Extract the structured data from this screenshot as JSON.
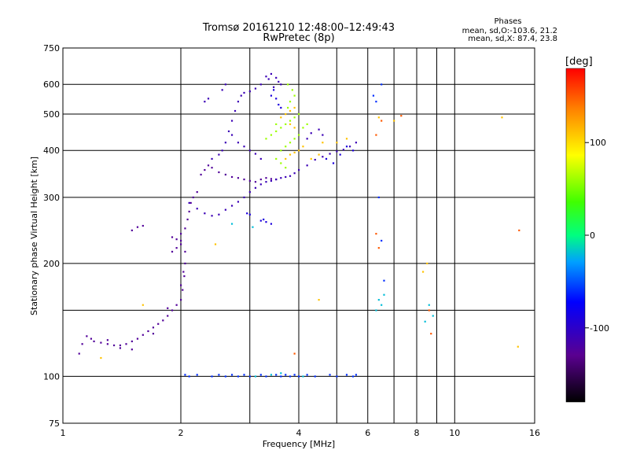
{
  "chart_data": {
    "type": "scatter",
    "title": "Tromsø 20161210 12:48:00–12:49:43",
    "subtitle": "RwPretec (8p)",
    "xlabel": "Frequency [MHz]",
    "ylabel": "Stationary phase Virtual Height [km]",
    "x_scale": "log",
    "y_scale": "log",
    "xlim": [
      1,
      16
    ],
    "ylim": [
      75,
      750
    ],
    "x_ticks": [
      1,
      2,
      4,
      6,
      8,
      10,
      16
    ],
    "x_tick_labels": [
      "1",
      "2",
      "4",
      "6",
      "8",
      "10",
      "16"
    ],
    "x_minor_gridlines": [
      3,
      5,
      7,
      9
    ],
    "y_ticks": [
      75,
      100,
      200,
      300,
      400,
      500,
      600,
      750
    ],
    "y_tick_labels": [
      "75",
      "100",
      "200",
      "300",
      "400",
      "500",
      "600",
      "750"
    ],
    "y_minor_gridlines": [
      150
    ],
    "grid": true,
    "info": {
      "heading": "Phases",
      "line_o": "mean, sd,O:-103.6, 21.2",
      "line_x": "mean, sd,X:  87.4, 23.8"
    },
    "colorbar": {
      "label": "[deg]",
      "range": [
        -180,
        180
      ],
      "ticks": [
        100,
        0,
        -100
      ],
      "tick_labels": [
        "100",
        "0",
        "-100"
      ],
      "colormap": "rainbow"
    },
    "series": [
      {
        "color_value": -125,
        "points": [
          [
            1.1,
            115
          ],
          [
            1.12,
            122
          ],
          [
            1.15,
            128
          ],
          [
            1.18,
            126
          ],
          [
            1.2,
            124
          ],
          [
            1.25,
            123
          ],
          [
            1.3,
            122
          ],
          [
            1.35,
            121
          ],
          [
            1.4,
            121
          ],
          [
            1.45,
            122
          ],
          [
            1.5,
            124
          ],
          [
            1.55,
            126
          ],
          [
            1.6,
            129
          ],
          [
            1.65,
            132
          ],
          [
            1.7,
            135
          ],
          [
            1.75,
            138
          ],
          [
            1.8,
            141
          ],
          [
            1.85,
            145
          ],
          [
            1.9,
            150
          ],
          [
            1.95,
            155
          ],
          [
            2.0,
            160
          ],
          [
            2.02,
            170
          ],
          [
            2.04,
            185
          ],
          [
            2.05,
            200
          ],
          [
            2.05,
            215
          ],
          [
            2.0,
            230
          ],
          [
            1.95,
            232
          ],
          [
            1.9,
            235
          ],
          [
            2.0,
            240
          ],
          [
            2.05,
            248
          ],
          [
            2.08,
            262
          ],
          [
            2.1,
            275
          ],
          [
            2.12,
            290
          ],
          [
            2.15,
            300
          ],
          [
            2.2,
            310
          ],
          [
            2.25,
            345
          ],
          [
            2.3,
            355
          ],
          [
            2.35,
            365
          ],
          [
            2.4,
            360
          ],
          [
            2.5,
            350
          ],
          [
            2.6,
            345
          ],
          [
            2.7,
            340
          ],
          [
            2.8,
            338
          ],
          [
            2.9,
            335
          ],
          [
            3.0,
            332
          ],
          [
            3.1,
            330
          ],
          [
            3.2,
            335
          ],
          [
            3.3,
            338
          ],
          [
            3.4,
            336
          ],
          [
            3.5,
            335
          ],
          [
            1.5,
            245
          ],
          [
            1.55,
            250
          ],
          [
            1.6,
            252
          ],
          [
            1.9,
            215
          ],
          [
            1.95,
            220
          ],
          [
            2.0,
            225
          ],
          [
            1.3,
            125
          ],
          [
            1.4,
            119
          ],
          [
            1.5,
            118
          ],
          [
            1.7,
            130
          ],
          [
            1.85,
            152
          ],
          [
            2.0,
            175
          ],
          [
            2.03,
            190
          ]
        ]
      },
      {
        "color_value": -110,
        "points": [
          [
            2.1,
            290
          ],
          [
            2.2,
            280
          ],
          [
            2.3,
            272
          ],
          [
            2.4,
            268
          ],
          [
            2.5,
            270
          ],
          [
            2.6,
            278
          ],
          [
            2.7,
            285
          ],
          [
            2.8,
            292
          ],
          [
            2.9,
            300
          ],
          [
            3.0,
            310
          ],
          [
            3.1,
            318
          ],
          [
            3.2,
            325
          ],
          [
            3.3,
            330
          ],
          [
            3.4,
            332
          ],
          [
            3.5,
            335
          ],
          [
            3.6,
            338
          ],
          [
            3.7,
            340
          ],
          [
            3.8,
            342
          ],
          [
            3.9,
            348
          ],
          [
            4.0,
            355
          ],
          [
            4.2,
            365
          ],
          [
            4.4,
            378
          ],
          [
            4.6,
            385
          ],
          [
            4.8,
            392
          ],
          [
            5.0,
            398
          ],
          [
            5.2,
            402
          ],
          [
            5.4,
            410
          ],
          [
            5.6,
            420
          ],
          [
            2.4,
            380
          ],
          [
            2.5,
            390
          ],
          [
            2.55,
            400
          ],
          [
            2.6,
            420
          ],
          [
            2.65,
            450
          ],
          [
            2.7,
            480
          ],
          [
            2.75,
            510
          ],
          [
            2.8,
            540
          ],
          [
            2.85,
            560
          ],
          [
            2.9,
            570
          ],
          [
            3.0,
            575
          ],
          [
            3.1,
            585
          ],
          [
            3.2,
            600
          ],
          [
            3.3,
            630
          ],
          [
            3.4,
            640
          ],
          [
            3.5,
            625
          ],
          [
            3.55,
            610
          ],
          [
            3.6,
            600
          ],
          [
            2.3,
            540
          ],
          [
            2.35,
            550
          ],
          [
            2.55,
            580
          ],
          [
            2.6,
            600
          ],
          [
            2.7,
            440
          ],
          [
            2.8,
            420
          ],
          [
            2.9,
            410
          ],
          [
            3.0,
            400
          ],
          [
            3.1,
            392
          ],
          [
            3.2,
            380
          ],
          [
            3.35,
            620
          ],
          [
            3.45,
            590
          ],
          [
            4.2,
            430
          ],
          [
            4.3,
            445
          ],
          [
            4.5,
            455
          ],
          [
            4.6,
            440
          ]
        ]
      },
      {
        "color_value": -90,
        "points": [
          [
            3.2,
            260
          ],
          [
            3.25,
            262
          ],
          [
            3.3,
            258
          ],
          [
            3.4,
            255
          ],
          [
            3.0,
            270
          ],
          [
            2.95,
            272
          ],
          [
            3.4,
            560
          ],
          [
            3.45,
            580
          ],
          [
            3.5,
            550
          ],
          [
            3.55,
            530
          ],
          [
            3.6,
            520
          ],
          [
            4.7,
            380
          ],
          [
            4.9,
            370
          ],
          [
            5.1,
            390
          ],
          [
            5.3,
            410
          ],
          [
            5.5,
            400
          ]
        ]
      },
      {
        "color_value": -60,
        "points": [
          [
            2.05,
            101
          ],
          [
            2.1,
            100
          ],
          [
            2.2,
            101
          ],
          [
            2.4,
            100
          ],
          [
            2.5,
            101
          ],
          [
            2.6,
            100
          ],
          [
            2.7,
            101
          ],
          [
            2.8,
            100
          ],
          [
            2.9,
            101
          ],
          [
            3.0,
            100
          ],
          [
            3.2,
            101
          ],
          [
            3.3,
            100
          ],
          [
            3.5,
            101
          ],
          [
            3.6,
            100
          ],
          [
            3.7,
            101
          ],
          [
            3.8,
            100
          ],
          [
            3.9,
            101
          ],
          [
            4.0,
            100
          ],
          [
            4.2,
            101
          ],
          [
            4.4,
            100
          ],
          [
            4.8,
            101
          ],
          [
            5.0,
            100
          ],
          [
            5.3,
            101
          ],
          [
            5.5,
            100
          ],
          [
            5.6,
            101
          ],
          [
            6.2,
            560
          ],
          [
            6.3,
            540
          ],
          [
            6.4,
            300
          ],
          [
            6.5,
            230
          ],
          [
            6.6,
            180
          ],
          [
            6.5,
            600
          ]
        ]
      },
      {
        "color_value": -20,
        "points": [
          [
            3.1,
            100
          ],
          [
            3.4,
            101
          ],
          [
            3.6,
            102
          ],
          [
            4.1,
            100
          ],
          [
            6.4,
            160
          ],
          [
            6.5,
            155
          ],
          [
            8.4,
            140
          ],
          [
            8.6,
            155
          ],
          [
            8.8,
            145
          ],
          [
            6.3,
            150
          ],
          [
            6.6,
            165
          ],
          [
            2.7,
            255
          ],
          [
            3.05,
            250
          ]
        ]
      },
      {
        "color_value": 60,
        "points": [
          [
            3.6,
            400
          ],
          [
            3.7,
            410
          ],
          [
            3.8,
            420
          ],
          [
            3.9,
            430
          ],
          [
            4.0,
            440
          ],
          [
            3.5,
            450
          ],
          [
            3.6,
            460
          ],
          [
            3.7,
            470
          ],
          [
            3.8,
            480
          ],
          [
            3.9,
            490
          ],
          [
            4.0,
            500
          ],
          [
            3.5,
            380
          ],
          [
            3.6,
            370
          ],
          [
            3.7,
            360
          ],
          [
            3.75,
            520
          ],
          [
            3.8,
            540
          ],
          [
            3.9,
            560
          ],
          [
            3.85,
            580
          ],
          [
            3.75,
            600
          ],
          [
            4.1,
            460
          ],
          [
            4.2,
            470
          ],
          [
            3.3,
            430
          ],
          [
            3.4,
            440
          ],
          [
            3.5,
            470
          ]
        ]
      },
      {
        "color_value": 110,
        "points": [
          [
            3.6,
            490
          ],
          [
            3.7,
            500
          ],
          [
            3.8,
            510
          ],
          [
            3.9,
            520
          ],
          [
            3.8,
            470
          ],
          [
            3.9,
            460
          ],
          [
            3.7,
            380
          ],
          [
            3.8,
            390
          ],
          [
            3.9,
            395
          ],
          [
            4.0,
            400
          ],
          [
            4.1,
            410
          ],
          [
            4.3,
            380
          ],
          [
            4.5,
            390
          ],
          [
            5.0,
            420
          ],
          [
            5.3,
            430
          ],
          [
            6.4,
            490
          ],
          [
            7.0,
            480
          ],
          [
            8.5,
            200
          ],
          [
            8.3,
            190
          ],
          [
            1.6,
            155
          ],
          [
            1.25,
            112
          ],
          [
            13.2,
            490
          ],
          [
            14.5,
            120
          ],
          [
            4.5,
            160
          ],
          [
            2.45,
            225
          ],
          [
            4.6,
            420
          ]
        ]
      },
      {
        "color_value": 150,
        "points": [
          [
            6.3,
            440
          ],
          [
            6.5,
            480
          ],
          [
            8.7,
            130
          ],
          [
            8.6,
            150
          ],
          [
            6.3,
            240
          ],
          [
            6.4,
            220
          ],
          [
            14.6,
            245
          ],
          [
            3.9,
            115
          ],
          [
            7.3,
            495
          ]
        ]
      }
    ]
  }
}
